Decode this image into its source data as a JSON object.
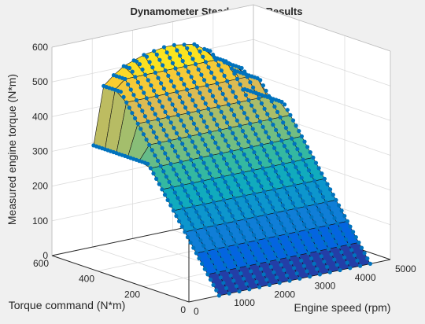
{
  "figure": {
    "background": "#f0f0f0",
    "axes_background": "#ffffff",
    "box_color": "#262626",
    "grid_color": "#dcdcdc"
  },
  "chart_data": {
    "type": "surface",
    "title": "Dynamometer Steady State Results",
    "xlabel": "Engine speed (rpm)",
    "ylabel": "Torque command (N*m)",
    "zlabel": "Measured engine torque (N*m)",
    "xlim": [
      0,
      5000
    ],
    "ylim": [
      0,
      600
    ],
    "zlim": [
      0,
      600
    ],
    "xticks": [
      "0",
      "1000",
      "2000",
      "3000",
      "4000",
      "5000"
    ],
    "yticks": [
      "0",
      "200",
      "400",
      "600"
    ],
    "zticks": [
      "0",
      "100",
      "200",
      "300",
      "400",
      "500",
      "600"
    ],
    "grid": true,
    "colormap": "parula",
    "colormap_stops": [
      "#352a87",
      "#0363e1",
      "#1485d4",
      "#06a7c6",
      "#38b99e",
      "#92bf73",
      "#d9ba56",
      "#fcce2e",
      "#f9fb0e"
    ],
    "marker_color": "#0072bd",
    "engine_speed_rpm": [
      750,
      1000,
      1250,
      1500,
      1750,
      2000,
      2250,
      2500,
      2750,
      3000,
      3250,
      3500,
      3750,
      4000,
      4250,
      4500
    ],
    "torque_command_Nm": [
      0,
      50,
      100,
      150,
      200,
      250,
      300,
      350,
      400,
      450,
      500,
      550
    ],
    "max_torque_curve": {
      "engine_speed_rpm": [
        750,
        1000,
        1250,
        1500,
        1750,
        2000,
        2250,
        2500,
        2750,
        3000,
        3250,
        3500,
        3750,
        4000,
        4250,
        4500
      ],
      "measured_torque_Nm": [
        310,
        475,
        500,
        520,
        530,
        540,
        545,
        550,
        550,
        545,
        540,
        520,
        490,
        470,
        440,
        380
      ]
    },
    "measured_torque_rule": "measured = min(torque_command, max_torque(engine_speed))",
    "markers": "measured points along each constant-speed line"
  }
}
